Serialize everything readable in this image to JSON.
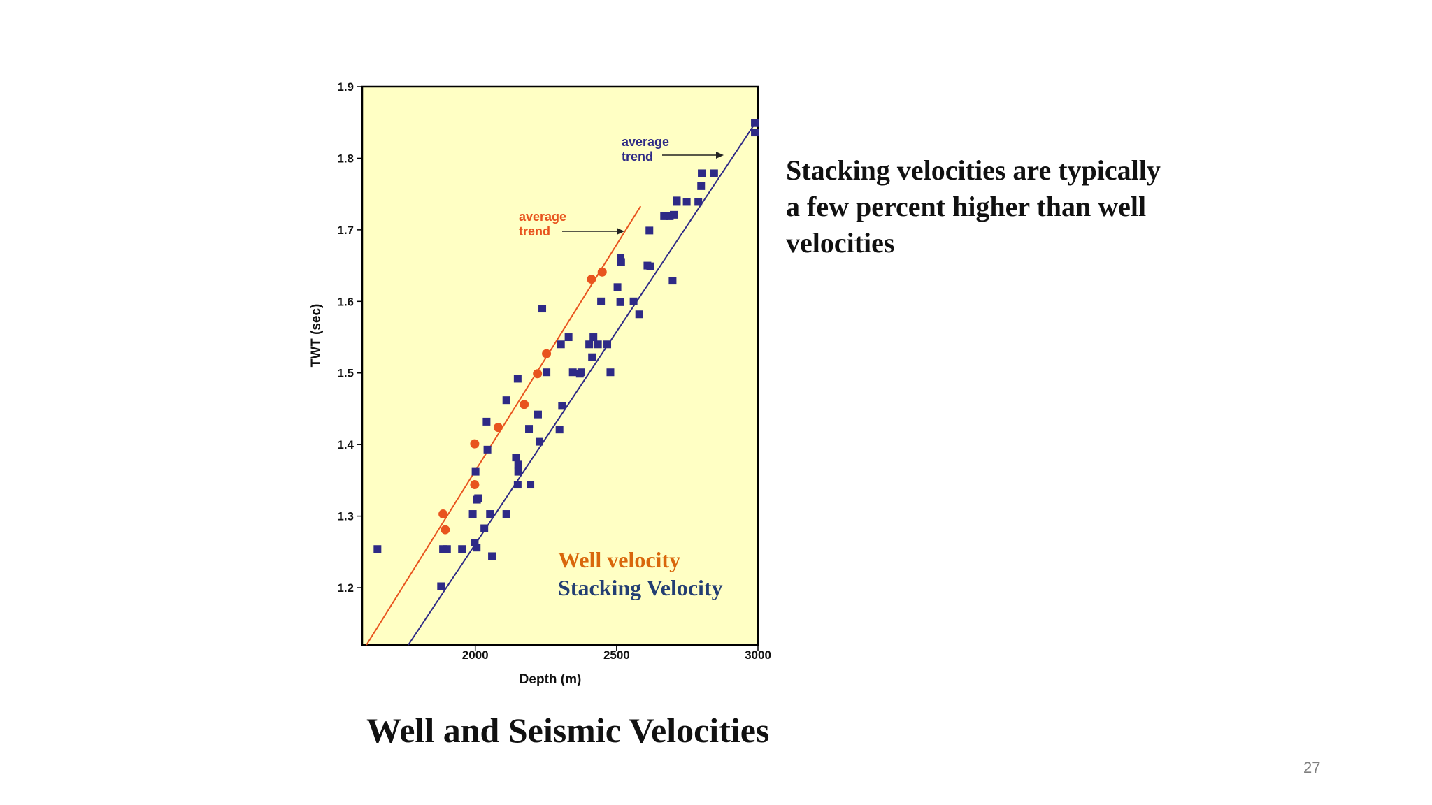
{
  "slide": {
    "title": "Well and Seismic Velocities",
    "side_text": "Stacking velocities are typically a few percent higher than well velocities",
    "page_number": "27"
  },
  "colors": {
    "plot_background": "#ffffc4",
    "well": "#e8541e",
    "stacking": "#2e2a86",
    "legend_well": "#d9670c",
    "legend_stacking": "#233e73"
  },
  "chart_data": {
    "type": "scatter",
    "xlabel": "Depth (m)",
    "ylabel": "TWT (sec)",
    "xlim": [
      1600,
      3000
    ],
    "ylim": [
      1.12,
      1.9
    ],
    "xticks": [
      2000,
      2500,
      3000
    ],
    "yticks": [
      1.2,
      1.3,
      1.4,
      1.5,
      1.6,
      1.7,
      1.8,
      1.9
    ],
    "grid": false,
    "annotations": [
      {
        "text_lines": [
          "average",
          "trend"
        ],
        "series": "well"
      },
      {
        "text_lines": [
          "average",
          "trend"
        ],
        "series": "stacking"
      }
    ],
    "legend": [
      "Well velocity",
      "Stacking Velocity"
    ],
    "series": [
      {
        "name": "Well velocity",
        "marker": "circle",
        "points": [
          [
            1886,
            1.303
          ],
          [
            1894,
            1.281
          ],
          [
            1998,
            1.401
          ],
          [
            1998,
            1.344
          ],
          [
            2081,
            1.424
          ],
          [
            2173,
            1.456
          ],
          [
            2220,
            1.499
          ],
          [
            2252,
            1.527
          ],
          [
            2411,
            1.631
          ],
          [
            2449,
            1.641
          ]
        ],
        "trend": [
          [
            1615,
            1.12
          ],
          [
            2585,
            1.733
          ]
        ]
      },
      {
        "name": "Stacking Velocity",
        "marker": "square",
        "points": [
          [
            1654,
            1.254
          ],
          [
            1879,
            1.202
          ],
          [
            1886,
            1.254
          ],
          [
            1900,
            1.254
          ],
          [
            1953,
            1.254
          ],
          [
            1991,
            1.303
          ],
          [
            1998,
            1.263
          ],
          [
            2005,
            1.256
          ],
          [
            2001,
            1.362
          ],
          [
            2006,
            1.323
          ],
          [
            2010,
            1.325
          ],
          [
            2032,
            1.283
          ],
          [
            2040,
            1.432
          ],
          [
            2043,
            1.393
          ],
          [
            2052,
            1.303
          ],
          [
            2059,
            1.244
          ],
          [
            2110,
            1.462
          ],
          [
            2110,
            1.303
          ],
          [
            2144,
            1.382
          ],
          [
            2150,
            1.492
          ],
          [
            2152,
            1.372
          ],
          [
            2152,
            1.362
          ],
          [
            2150,
            1.344
          ],
          [
            2195,
            1.344
          ],
          [
            2190,
            1.422
          ],
          [
            2222,
            1.442
          ],
          [
            2227,
            1.404
          ],
          [
            2237,
            1.59
          ],
          [
            2252,
            1.501
          ],
          [
            2298,
            1.421
          ],
          [
            2303,
            1.54
          ],
          [
            2307,
            1.454
          ],
          [
            2330,
            1.55
          ],
          [
            2345,
            1.501
          ],
          [
            2370,
            1.499
          ],
          [
            2375,
            1.501
          ],
          [
            2403,
            1.54
          ],
          [
            2413,
            1.522
          ],
          [
            2418,
            1.55
          ],
          [
            2434,
            1.54
          ],
          [
            2445,
            1.6
          ],
          [
            2467,
            1.54
          ],
          [
            2478,
            1.501
          ],
          [
            2503,
            1.62
          ],
          [
            2513,
            1.599
          ],
          [
            2514,
            1.661
          ],
          [
            2516,
            1.655
          ],
          [
            2560,
            1.6
          ],
          [
            2580,
            1.582
          ],
          [
            2609,
            1.65
          ],
          [
            2619,
            1.649
          ],
          [
            2616,
            1.699
          ],
          [
            2668,
            1.719
          ],
          [
            2688,
            1.719
          ],
          [
            2698,
            1.629
          ],
          [
            2702,
            1.721
          ],
          [
            2713,
            1.739
          ],
          [
            2713,
            1.741
          ],
          [
            2748,
            1.739
          ],
          [
            2789,
            1.739
          ],
          [
            2801,
            1.779
          ],
          [
            2799,
            1.761
          ],
          [
            2845,
            1.779
          ],
          [
            2989,
            1.849
          ],
          [
            2989,
            1.836
          ]
        ],
        "trend": [
          [
            1763,
            1.12
          ],
          [
            2992,
            1.85
          ]
        ]
      }
    ]
  }
}
